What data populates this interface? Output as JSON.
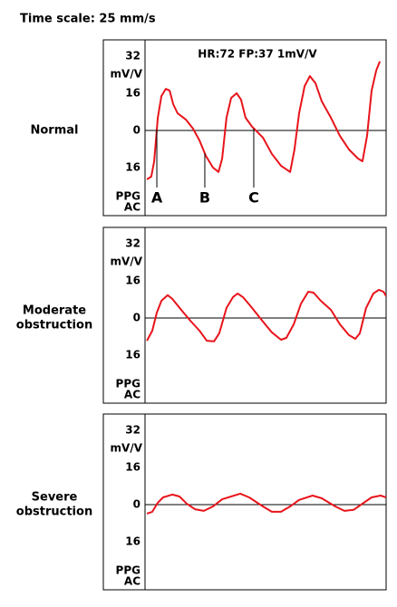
{
  "title": "Time scale: 25 mm/s",
  "chart_data": [
    {
      "type": "line",
      "title": [
        "Normal"
      ],
      "annotation": "HR:72  FP:37  1mV/V",
      "ylabel": "mV/V",
      "channel_label": [
        "PPG",
        "AC"
      ],
      "color": "#e8141b",
      "xlim": [
        0,
        100
      ],
      "ylim": [
        -36.7,
        39
      ],
      "yticks": [
        32,
        16,
        0,
        {
          "value": -16,
          "label": "16"
        }
      ],
      "hlines": [
        0
      ],
      "markers": [
        {
          "label": "A",
          "x": 4.9
        },
        {
          "label": "B",
          "x": 24.8
        },
        {
          "label": "C",
          "x": 45.1
        }
      ],
      "x": [
        0.8,
        2.6,
        3.8,
        5.3,
        6.8,
        8.6,
        10.2,
        11.7,
        13.5,
        16.9,
        19.9,
        22.6,
        25.2,
        28.2,
        30.5,
        32.0,
        33.8,
        35.7,
        38.0,
        39.8,
        41.7,
        44.4,
        48.9,
        52.6,
        56.4,
        60.2,
        62.0,
        63.9,
        66.2,
        68.4,
        70.7,
        73.3,
        77.1,
        80.8,
        84.6,
        88.3,
        90.2,
        92.1,
        94.0,
        95.9,
        97.4
      ],
      "values": [
        -21.1,
        -19.9,
        -13.3,
        5.5,
        14.8,
        17.9,
        17.2,
        11.3,
        7.4,
        4.7,
        0.8,
        -4.3,
        -10.9,
        -16.0,
        -17.9,
        -12.1,
        5.5,
        14.0,
        16.0,
        13.3,
        5.5,
        1.6,
        -3.1,
        -10.1,
        -15.2,
        -17.9,
        -8.2,
        7.4,
        19.1,
        23.4,
        20.3,
        12.5,
        5.5,
        -2.3,
        -8.2,
        -12.1,
        -13.3,
        -2.3,
        17.2,
        25.8,
        29.7
      ]
    },
    {
      "type": "line",
      "title": [
        "Moderate",
        "obstruction"
      ],
      "ylabel": "mV/V",
      "channel_label": [
        "PPG",
        "AC"
      ],
      "color": "#e8141b",
      "xlim": [
        0,
        100
      ],
      "ylim": [
        -36.7,
        39
      ],
      "yticks": [
        32,
        16,
        0,
        {
          "value": -16,
          "label": "16"
        }
      ],
      "hlines": [
        0
      ],
      "x": [
        0.8,
        3.0,
        4.9,
        6.8,
        9.4,
        11.3,
        15.0,
        18.8,
        22.6,
        25.6,
        28.6,
        30.8,
        33.8,
        36.5,
        38.4,
        40.6,
        44.4,
        48.9,
        52.6,
        56.4,
        58.6,
        61.7,
        64.7,
        67.7,
        69.9,
        72.9,
        77.1,
        80.8,
        84.6,
        87.2,
        89.1,
        91.7,
        94.7,
        97.0,
        98.9,
        100
      ],
      "values": [
        -9.8,
        -5.5,
        2.3,
        7.4,
        9.8,
        8.2,
        3.5,
        -1.2,
        -5.5,
        -9.8,
        -10.1,
        -6.6,
        4.3,
        9.0,
        10.5,
        9.0,
        4.3,
        -1.6,
        -6.2,
        -9.4,
        -8.6,
        -2.7,
        6.2,
        11.3,
        10.9,
        7.4,
        3.5,
        -2.7,
        -7.4,
        -9.0,
        -6.6,
        4.3,
        10.5,
        12.1,
        11.3,
        9.4
      ]
    },
    {
      "type": "line",
      "title": [
        "Severe",
        "obstruction"
      ],
      "ylabel": "mV/V",
      "channel_label": [
        "PPG",
        "AC"
      ],
      "color": "#e8141b",
      "xlim": [
        0,
        100
      ],
      "ylim": [
        -36.7,
        39
      ],
      "yticks": [
        32,
        16,
        0,
        {
          "value": -16,
          "label": "16"
        }
      ],
      "hlines": [
        0
      ],
      "x": [
        0.8,
        3.0,
        5.3,
        7.5,
        11.3,
        14.3,
        17.3,
        20.7,
        24.4,
        28.2,
        32.0,
        39.5,
        43.2,
        48.9,
        52.6,
        56.4,
        60.2,
        63.9,
        69.5,
        73.3,
        78.9,
        82.7,
        86.5,
        90.2,
        94.0,
        97.7,
        100
      ],
      "values": [
        -3.9,
        -3.1,
        0.8,
        3.1,
        4.3,
        3.5,
        0.4,
        -2.0,
        -2.7,
        -0.8,
        2.3,
        4.7,
        3.1,
        -0.8,
        -3.1,
        -3.1,
        -0.8,
        2.0,
        3.9,
        2.7,
        -0.8,
        -2.7,
        -2.3,
        0.4,
        3.1,
        3.9,
        3.1
      ]
    }
  ]
}
